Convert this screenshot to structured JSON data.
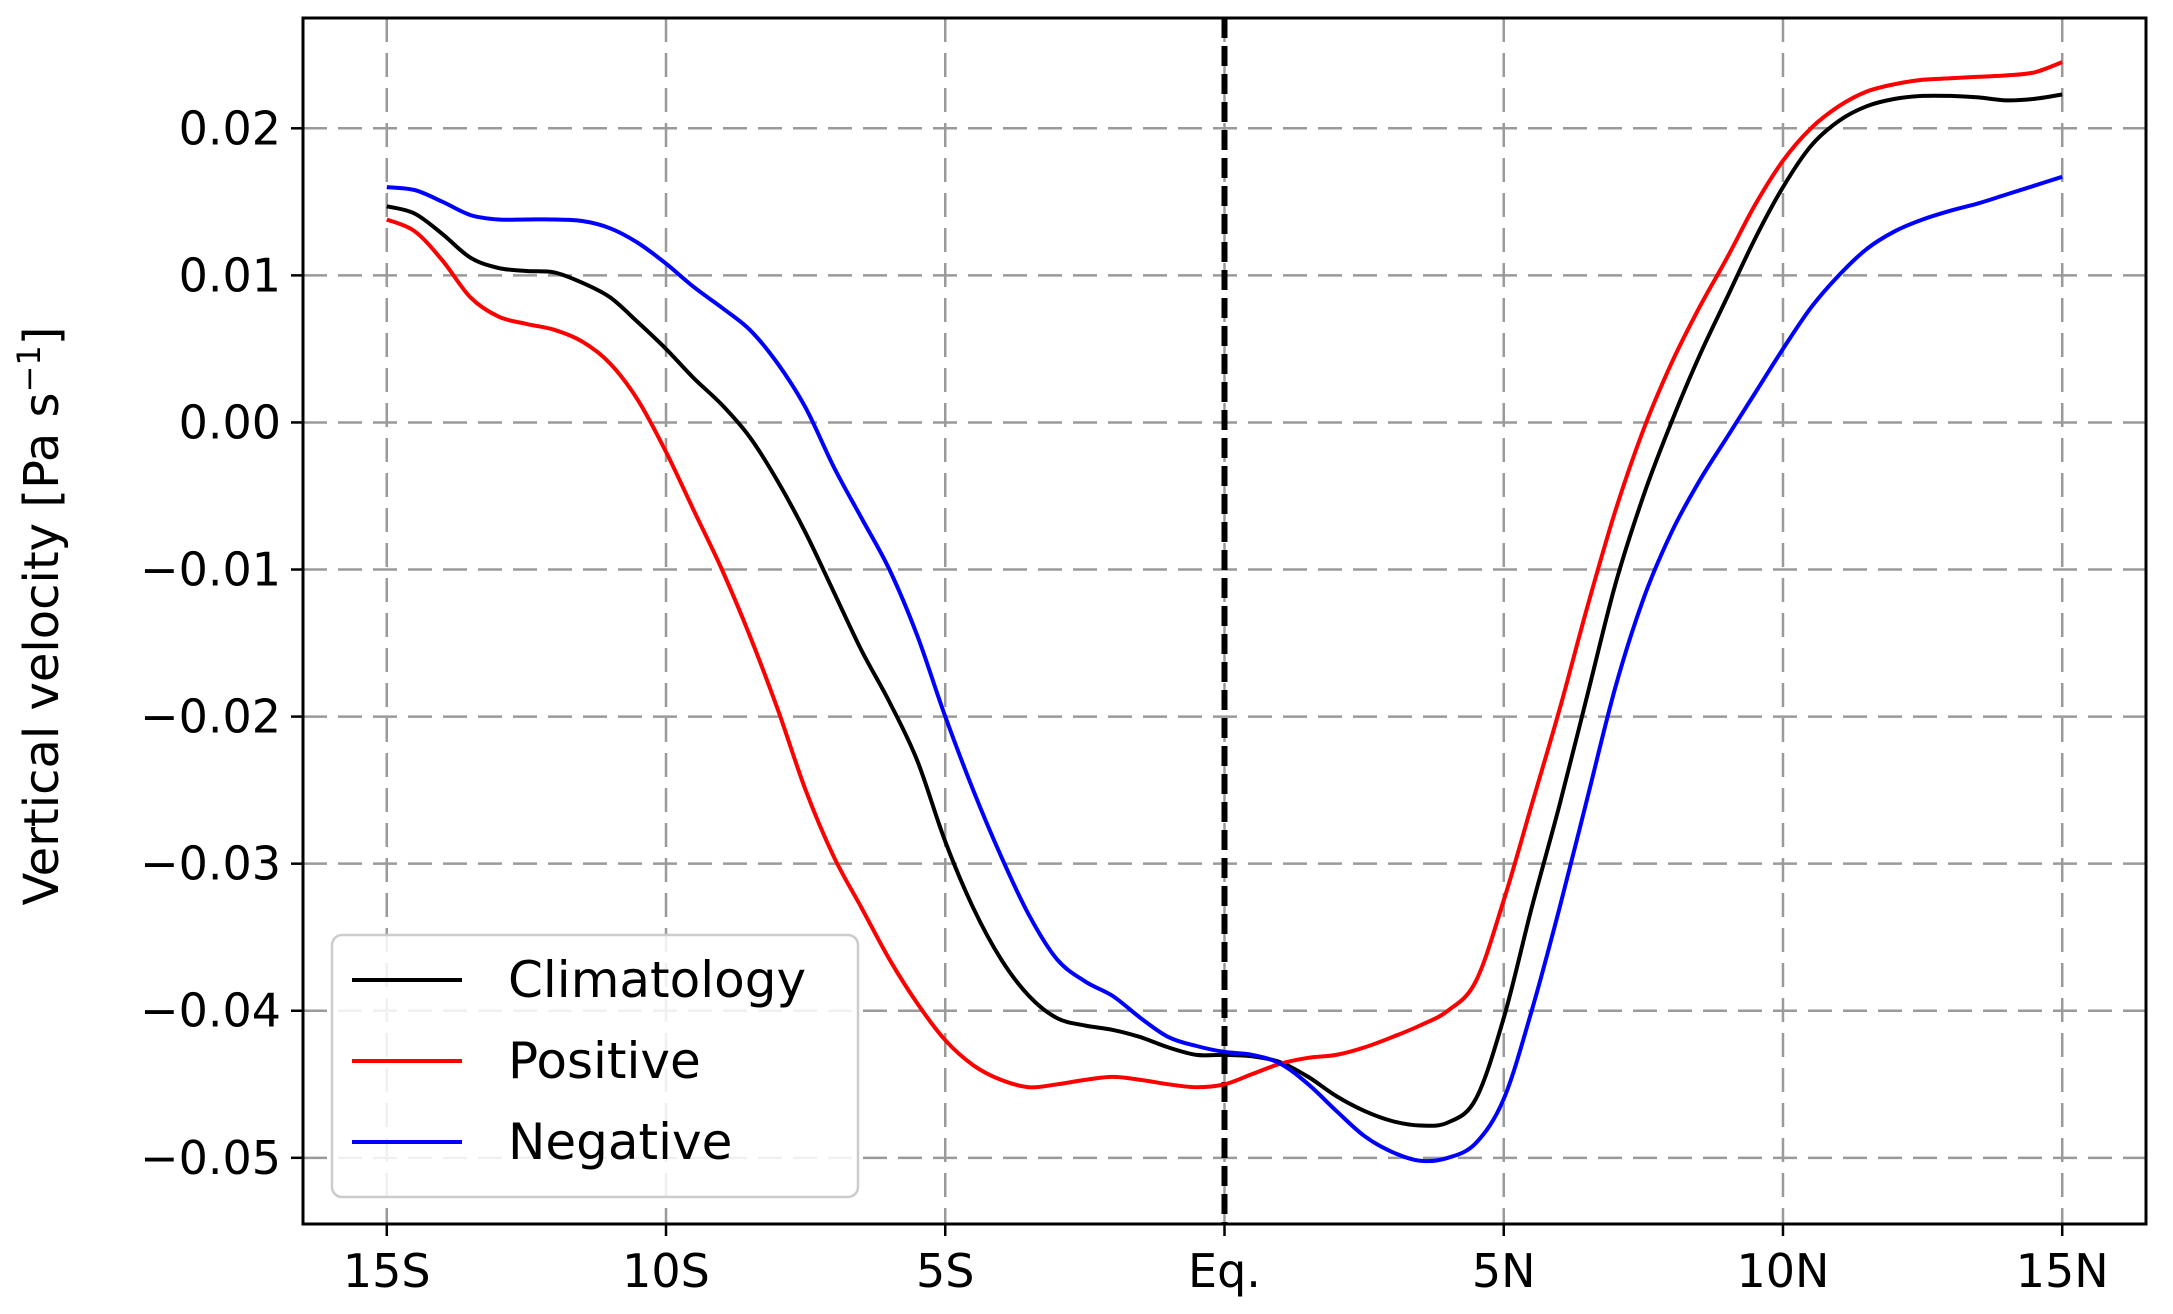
{
  "chart_data": {
    "type": "line",
    "title": "",
    "xlabel": "",
    "ylabel": "Vertical velocity [Pa s",
    "ylabel_exponent": "−1",
    "ylabel_close": "]",
    "xlim": [
      -16.5,
      16.5
    ],
    "ylim": [
      -0.0545,
      0.0275
    ],
    "xticks": [
      -15,
      -10,
      -5,
      0,
      5,
      10,
      15
    ],
    "xtick_labels": [
      "15S",
      "10S",
      "5S",
      "Eq.",
      "5N",
      "10N",
      "15N"
    ],
    "yticks": [
      0.02,
      0.01,
      0.0,
      -0.01,
      -0.02,
      -0.03,
      -0.04,
      -0.05
    ],
    "ytick_labels": [
      "0.02",
      "0.01",
      "0.00",
      "−0.01",
      "−0.02",
      "−0.03",
      "−0.04",
      "−0.05"
    ],
    "grid": true,
    "equator_marker": 0,
    "legend_position": "lower-left",
    "series": [
      {
        "name": "Climatology",
        "color": "#000000",
        "points": [
          [
            -15,
            0.0147
          ],
          [
            -14.5,
            0.0142
          ],
          [
            -14,
            0.0128
          ],
          [
            -13.5,
            0.0112
          ],
          [
            -13,
            0.0105
          ],
          [
            -12.5,
            0.0103
          ],
          [
            -12,
            0.0102
          ],
          [
            -11.5,
            0.0095
          ],
          [
            -11,
            0.0085
          ],
          [
            -10.5,
            0.0068
          ],
          [
            -10,
            0.005
          ],
          [
            -9.5,
            0.003
          ],
          [
            -9,
            0.0012
          ],
          [
            -8.5,
            -0.001
          ],
          [
            -8,
            -0.004
          ],
          [
            -7.5,
            -0.0075
          ],
          [
            -7,
            -0.0115
          ],
          [
            -6.5,
            -0.0155
          ],
          [
            -6,
            -0.019
          ],
          [
            -5.5,
            -0.023
          ],
          [
            -5,
            -0.0285
          ],
          [
            -4.5,
            -0.033
          ],
          [
            -4,
            -0.0365
          ],
          [
            -3.5,
            -0.039
          ],
          [
            -3,
            -0.0405
          ],
          [
            -2.5,
            -0.041
          ],
          [
            -2,
            -0.0413
          ],
          [
            -1.5,
            -0.0418
          ],
          [
            -1,
            -0.0425
          ],
          [
            -0.5,
            -0.043
          ],
          [
            0,
            -0.043
          ],
          [
            0.5,
            -0.0431
          ],
          [
            1,
            -0.0435
          ],
          [
            1.5,
            -0.0445
          ],
          [
            2,
            -0.0458
          ],
          [
            2.5,
            -0.0468
          ],
          [
            3,
            -0.0475
          ],
          [
            3.5,
            -0.0478
          ],
          [
            4,
            -0.0476
          ],
          [
            4.5,
            -0.046
          ],
          [
            5,
            -0.0405
          ],
          [
            5.5,
            -0.033
          ],
          [
            6,
            -0.026
          ],
          [
            6.5,
            -0.0185
          ],
          [
            7,
            -0.011
          ],
          [
            7.5,
            -0.005
          ],
          [
            8,
            0.0
          ],
          [
            8.5,
            0.0045
          ],
          [
            9,
            0.0085
          ],
          [
            9.5,
            0.0125
          ],
          [
            10,
            0.016
          ],
          [
            10.5,
            0.0188
          ],
          [
            11,
            0.0205
          ],
          [
            11.5,
            0.0215
          ],
          [
            12,
            0.022
          ],
          [
            12.5,
            0.0222
          ],
          [
            13,
            0.0222
          ],
          [
            13.5,
            0.0221
          ],
          [
            14,
            0.0219
          ],
          [
            14.5,
            0.022
          ],
          [
            15,
            0.0223
          ]
        ]
      },
      {
        "name": "Positive",
        "color": "#ff0000",
        "points": [
          [
            -15,
            0.0138
          ],
          [
            -14.5,
            0.013
          ],
          [
            -14,
            0.011
          ],
          [
            -13.5,
            0.0085
          ],
          [
            -13,
            0.0072
          ],
          [
            -12.5,
            0.0067
          ],
          [
            -12,
            0.0063
          ],
          [
            -11.5,
            0.0055
          ],
          [
            -11,
            0.004
          ],
          [
            -10.5,
            0.0015
          ],
          [
            -10,
            -0.002
          ],
          [
            -9.5,
            -0.006
          ],
          [
            -9,
            -0.01
          ],
          [
            -8.5,
            -0.0145
          ],
          [
            -8,
            -0.0195
          ],
          [
            -7.5,
            -0.025
          ],
          [
            -7,
            -0.0295
          ],
          [
            -6.5,
            -0.033
          ],
          [
            -6,
            -0.0365
          ],
          [
            -5.5,
            -0.0395
          ],
          [
            -5,
            -0.042
          ],
          [
            -4.5,
            -0.0437
          ],
          [
            -4,
            -0.0447
          ],
          [
            -3.5,
            -0.0452
          ],
          [
            -3,
            -0.045
          ],
          [
            -2.5,
            -0.0447
          ],
          [
            -2,
            -0.0445
          ],
          [
            -1.5,
            -0.0447
          ],
          [
            -1,
            -0.045
          ],
          [
            -0.5,
            -0.0452
          ],
          [
            0,
            -0.045
          ],
          [
            0.5,
            -0.0443
          ],
          [
            1,
            -0.0436
          ],
          [
            1.5,
            -0.0432
          ],
          [
            2,
            -0.043
          ],
          [
            2.5,
            -0.0425
          ],
          [
            3,
            -0.0418
          ],
          [
            3.5,
            -0.041
          ],
          [
            4,
            -0.04
          ],
          [
            4.5,
            -0.038
          ],
          [
            5,
            -0.0325
          ],
          [
            5.5,
            -0.026
          ],
          [
            6,
            -0.0195
          ],
          [
            6.5,
            -0.0125
          ],
          [
            7,
            -0.006
          ],
          [
            7.5,
            -0.0005
          ],
          [
            8,
            0.004
          ],
          [
            8.5,
            0.0078
          ],
          [
            9,
            0.0112
          ],
          [
            9.5,
            0.0148
          ],
          [
            10,
            0.0178
          ],
          [
            10.5,
            0.02
          ],
          [
            11,
            0.0215
          ],
          [
            11.5,
            0.0225
          ],
          [
            12,
            0.023
          ],
          [
            12.5,
            0.0233
          ],
          [
            13,
            0.0234
          ],
          [
            13.5,
            0.0235
          ],
          [
            14,
            0.0236
          ],
          [
            14.5,
            0.0238
          ],
          [
            15,
            0.0245
          ]
        ]
      },
      {
        "name": "Negative",
        "color": "#0000ff",
        "points": [
          [
            -15,
            0.016
          ],
          [
            -14.5,
            0.0158
          ],
          [
            -14,
            0.015
          ],
          [
            -13.5,
            0.0141
          ],
          [
            -13,
            0.0138
          ],
          [
            -12.5,
            0.0138
          ],
          [
            -12,
            0.0138
          ],
          [
            -11.5,
            0.0137
          ],
          [
            -11,
            0.0132
          ],
          [
            -10.5,
            0.0122
          ],
          [
            -10,
            0.0108
          ],
          [
            -9.5,
            0.0092
          ],
          [
            -9,
            0.0078
          ],
          [
            -8.5,
            0.0063
          ],
          [
            -8,
            0.004
          ],
          [
            -7.5,
            0.001
          ],
          [
            -7,
            -0.003
          ],
          [
            -6.5,
            -0.0065
          ],
          [
            -6,
            -0.01
          ],
          [
            -5.5,
            -0.0145
          ],
          [
            -5,
            -0.02
          ],
          [
            -4.5,
            -0.025
          ],
          [
            -4,
            -0.0295
          ],
          [
            -3.5,
            -0.0335
          ],
          [
            -3,
            -0.0365
          ],
          [
            -2.5,
            -0.038
          ],
          [
            -2,
            -0.039
          ],
          [
            -1.5,
            -0.0405
          ],
          [
            -1,
            -0.0418
          ],
          [
            -0.5,
            -0.0424
          ],
          [
            0,
            -0.0428
          ],
          [
            0.5,
            -0.043
          ],
          [
            1,
            -0.0436
          ],
          [
            1.5,
            -0.045
          ],
          [
            2,
            -0.0468
          ],
          [
            2.5,
            -0.0485
          ],
          [
            3,
            -0.0496
          ],
          [
            3.5,
            -0.0502
          ],
          [
            4,
            -0.05
          ],
          [
            4.5,
            -0.049
          ],
          [
            5,
            -0.046
          ],
          [
            5.5,
            -0.04
          ],
          [
            6,
            -0.033
          ],
          [
            6.5,
            -0.0255
          ],
          [
            7,
            -0.018
          ],
          [
            7.5,
            -0.012
          ],
          [
            8,
            -0.0075
          ],
          [
            8.5,
            -0.004
          ],
          [
            9,
            -0.001
          ],
          [
            9.5,
            0.002
          ],
          [
            10,
            0.005
          ],
          [
            10.5,
            0.0078
          ],
          [
            11,
            0.01
          ],
          [
            11.5,
            0.0118
          ],
          [
            12,
            0.013
          ],
          [
            12.5,
            0.0138
          ],
          [
            13,
            0.0144
          ],
          [
            13.5,
            0.0149
          ],
          [
            14,
            0.0155
          ],
          [
            14.5,
            0.0161
          ],
          [
            15,
            0.0167
          ]
        ]
      }
    ]
  }
}
